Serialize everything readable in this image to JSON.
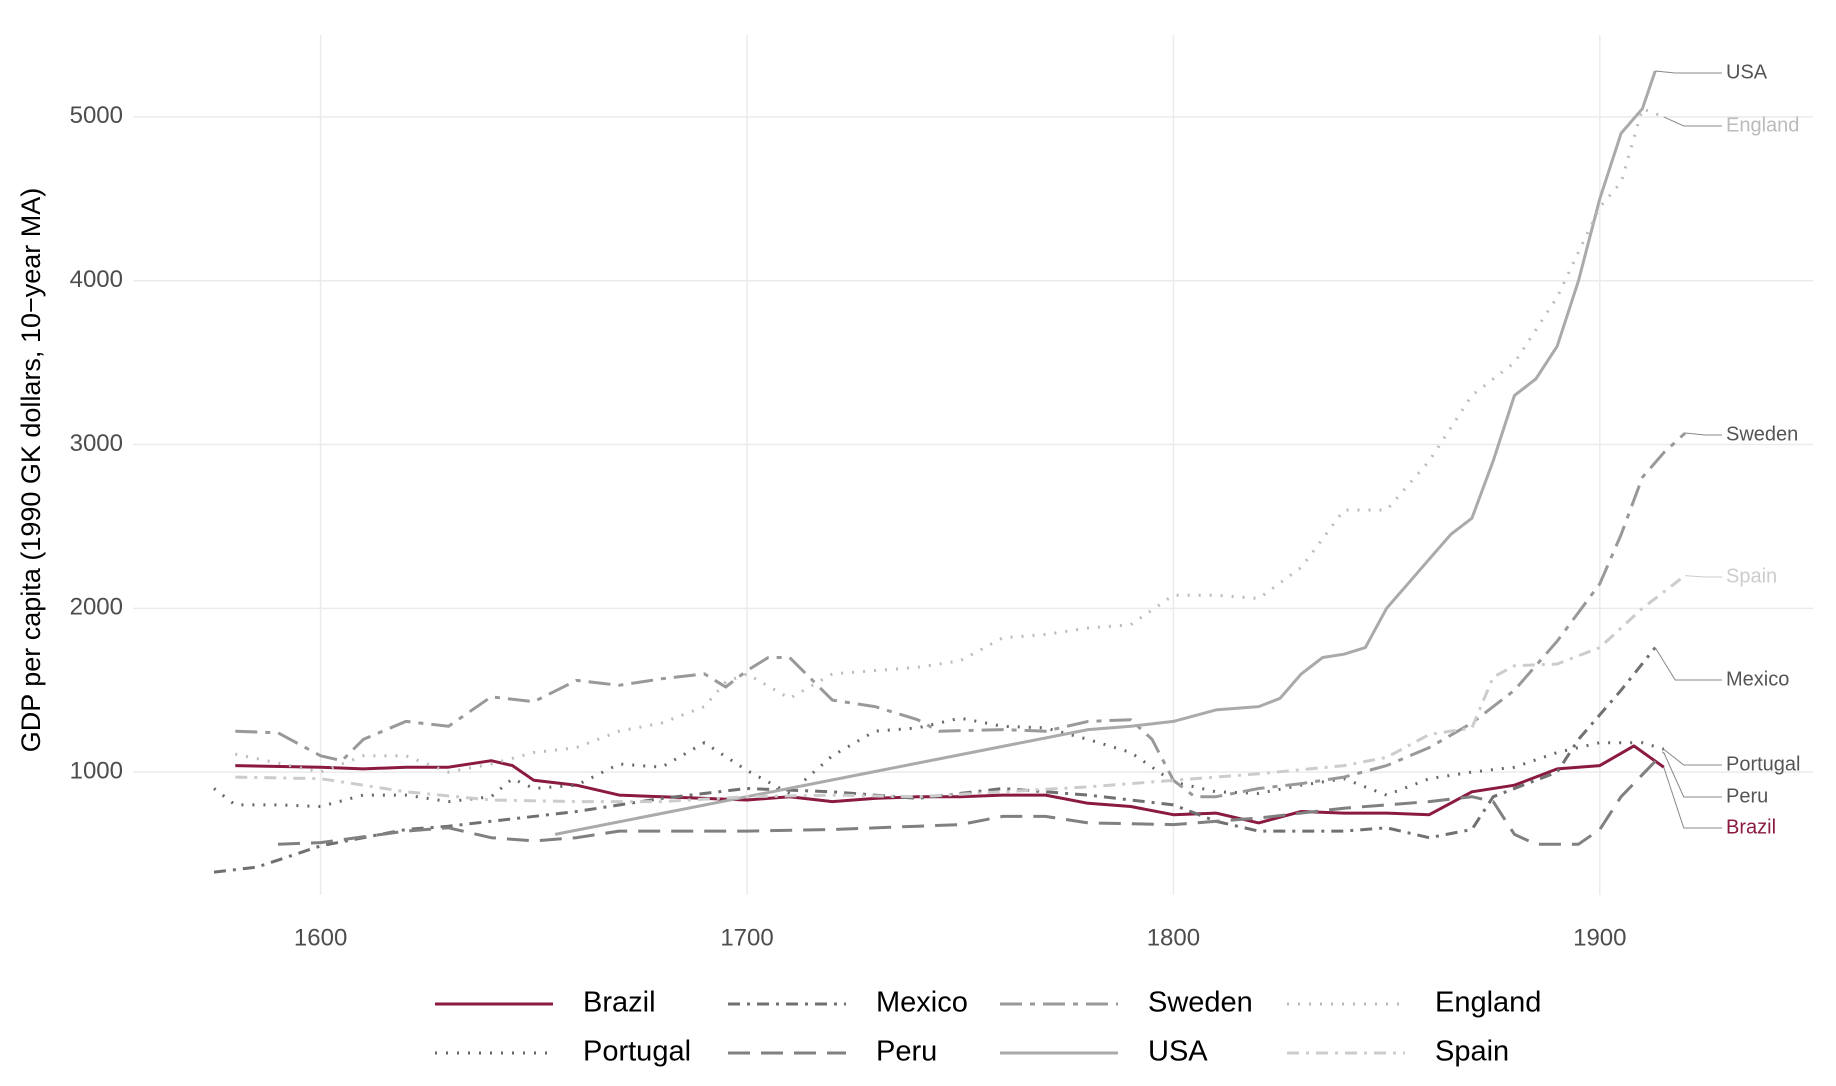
{
  "chart_data": {
    "type": "line",
    "y_label": "GDP per capita (1990 GK dollars, 10−year MA)",
    "xlim": [
      1556,
      1950
    ],
    "ylim": [
      250,
      5500
    ],
    "xticks": [
      1600,
      1700,
      1800,
      1900
    ],
    "yticks": [
      1000,
      2000,
      3000,
      4000,
      5000
    ],
    "grid": true,
    "legend": "bottom",
    "series": [
      {
        "name": "Brazil",
        "color": "#8b1a42",
        "dash": "solid",
        "x": [
          1580,
          1600,
          1610,
          1620,
          1630,
          1640,
          1645,
          1650,
          1660,
          1670,
          1680,
          1690,
          1700,
          1710,
          1720,
          1730,
          1740,
          1750,
          1760,
          1770,
          1780,
          1790,
          1800,
          1810,
          1820,
          1830,
          1840,
          1850,
          1860,
          1870,
          1880,
          1890,
          1900,
          1908,
          1915
        ],
        "values": [
          1040,
          1030,
          1020,
          1030,
          1030,
          1070,
          1040,
          950,
          920,
          860,
          850,
          840,
          830,
          850,
          820,
          840,
          850,
          850,
          860,
          860,
          810,
          790,
          740,
          750,
          690,
          760,
          750,
          750,
          740,
          880,
          920,
          1020,
          1040,
          1160,
          1030
        ]
      },
      {
        "name": "Portugal",
        "color": "#666666",
        "dash": "dotted",
        "x": [
          1575,
          1580,
          1590,
          1600,
          1610,
          1620,
          1630,
          1640,
          1645,
          1650,
          1660,
          1670,
          1680,
          1690,
          1700,
          1710,
          1720,
          1730,
          1740,
          1750,
          1760,
          1770,
          1780,
          1790,
          1800,
          1810,
          1820,
          1830,
          1840,
          1850,
          1860,
          1870,
          1880,
          1890,
          1900,
          1910,
          1915
        ],
        "values": [
          900,
          800,
          800,
          790,
          860,
          860,
          820,
          850,
          960,
          900,
          920,
          1050,
          1030,
          1180,
          1010,
          870,
          1100,
          1250,
          1270,
          1330,
          1280,
          1270,
          1200,
          1120,
          940,
          880,
          870,
          920,
          960,
          860,
          960,
          1000,
          1030,
          1120,
          1180,
          1180,
          1140
        ]
      },
      {
        "name": "Mexico",
        "color": "#707070",
        "dash": "dashdot",
        "x": [
          1575,
          1585,
          1600,
          1620,
          1630,
          1640,
          1660,
          1680,
          1700,
          1720,
          1740,
          1760,
          1780,
          1800,
          1810,
          1820,
          1840,
          1850,
          1860,
          1870,
          1875,
          1890,
          1895,
          1905,
          1913
        ],
        "values": [
          390,
          420,
          550,
          650,
          670,
          700,
          760,
          840,
          900,
          880,
          840,
          900,
          860,
          800,
          700,
          640,
          640,
          660,
          600,
          650,
          850,
          1000,
          1200,
          1500,
          1760
        ]
      },
      {
        "name": "Peru",
        "color": "#808080",
        "dash": "dashed",
        "x": [
          1590,
          1600,
          1620,
          1630,
          1640,
          1650,
          1660,
          1670,
          1700,
          1720,
          1740,
          1750,
          1760,
          1770,
          1780,
          1800,
          1820,
          1840,
          1860,
          1870,
          1875,
          1880,
          1885,
          1895,
          1900,
          1905,
          1915
        ],
        "values": [
          560,
          570,
          640,
          660,
          600,
          580,
          600,
          640,
          640,
          650,
          670,
          680,
          730,
          730,
          690,
          680,
          720,
          780,
          820,
          850,
          820,
          620,
          560,
          560,
          650,
          850,
          1120
        ]
      },
      {
        "name": "Sweden",
        "color": "#999999",
        "dash": "longdashdot",
        "x": [
          1580,
          1590,
          1600,
          1605,
          1610,
          1620,
          1630,
          1640,
          1650,
          1660,
          1670,
          1680,
          1690,
          1695,
          1700,
          1705,
          1710,
          1720,
          1730,
          1740,
          1745,
          1760,
          1770,
          1780,
          1790,
          1795,
          1800,
          1805,
          1810,
          1820,
          1830,
          1840,
          1850,
          1860,
          1870,
          1880,
          1890,
          1900,
          1905,
          1910,
          1915,
          1920
        ],
        "values": [
          1250,
          1240,
          1100,
          1070,
          1200,
          1310,
          1280,
          1460,
          1430,
          1560,
          1530,
          1570,
          1600,
          1520,
          1620,
          1700,
          1700,
          1440,
          1400,
          1320,
          1250,
          1260,
          1250,
          1310,
          1320,
          1200,
          950,
          850,
          850,
          900,
          930,
          970,
          1040,
          1150,
          1300,
          1500,
          1800,
          2150,
          2450,
          2800,
          2950,
          3070
        ]
      },
      {
        "name": "USA",
        "color": "#aaaaaa",
        "dash": "solid",
        "x": [
          1655,
          1780,
          1790,
          1800,
          1810,
          1820,
          1825,
          1830,
          1835,
          1840,
          1845,
          1850,
          1855,
          1860,
          1865,
          1870,
          1875,
          1880,
          1885,
          1890,
          1895,
          1900,
          1905,
          1910,
          1913
        ],
        "values": [
          620,
          1260,
          1280,
          1310,
          1380,
          1400,
          1450,
          1600,
          1700,
          1720,
          1760,
          2000,
          2150,
          2300,
          2450,
          2550,
          2900,
          3300,
          3400,
          3600,
          4000,
          4500,
          4900,
          5050,
          5280
        ]
      },
      {
        "name": "England",
        "color": "#bbbbbb",
        "dash": "dotted",
        "x": [
          1580,
          1600,
          1610,
          1620,
          1630,
          1640,
          1650,
          1660,
          1670,
          1680,
          1690,
          1695,
          1700,
          1710,
          1720,
          1730,
          1740,
          1750,
          1760,
          1770,
          1780,
          1790,
          1800,
          1810,
          1820,
          1830,
          1840,
          1850,
          1860,
          1870,
          1880,
          1890,
          1900,
          1905,
          1910,
          1915
        ],
        "values": [
          1110,
          1000,
          1100,
          1100,
          1000,
          1050,
          1120,
          1150,
          1250,
          1300,
          1400,
          1550,
          1600,
          1450,
          1600,
          1620,
          1640,
          1680,
          1820,
          1840,
          1880,
          1900,
          2080,
          2080,
          2060,
          2250,
          2600,
          2600,
          2900,
          3300,
          3500,
          3900,
          4450,
          4600,
          5050,
          5000
        ]
      },
      {
        "name": "Spain",
        "color": "#cccccc",
        "dash": "dashdot",
        "x": [
          1580,
          1600,
          1610,
          1620,
          1640,
          1660,
          1680,
          1700,
          1720,
          1740,
          1760,
          1780,
          1800,
          1820,
          1840,
          1850,
          1860,
          1870,
          1875,
          1880,
          1890,
          1900,
          1910,
          1920
        ],
        "values": [
          970,
          960,
          920,
          880,
          830,
          820,
          820,
          850,
          860,
          850,
          880,
          910,
          950,
          990,
          1040,
          1090,
          1230,
          1270,
          1580,
          1650,
          1660,
          1760,
          2000,
          2200
        ]
      }
    ]
  }
}
